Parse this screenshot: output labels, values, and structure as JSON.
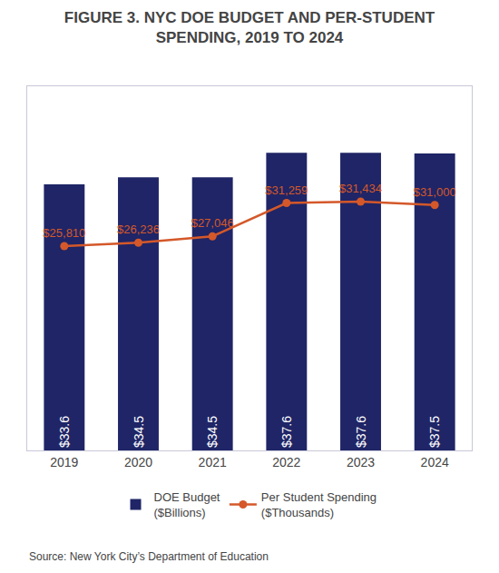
{
  "chart_data": {
    "type": "bar",
    "title": "FIGURE 3. NYC DOE BUDGET AND PER-STUDENT\nSPENDING, 2019 TO 2024",
    "categories": [
      "2019",
      "2020",
      "2021",
      "2022",
      "2023",
      "2024"
    ],
    "series": [
      {
        "name": "DOE Budget\n($Billions)",
        "type": "bar",
        "color": "#1f2566",
        "values": [
          33.6,
          34.5,
          34.5,
          37.6,
          37.6,
          37.5
        ],
        "value_labels": [
          "$33.6",
          "$34.5",
          "$34.5",
          "$37.6",
          "$37.6",
          "$37.5"
        ]
      },
      {
        "name": "Per Student Spending\n($Thousands)",
        "type": "line",
        "axis": "y2",
        "color": "#d4582a",
        "marker": "circle",
        "values": [
          25810,
          26236,
          27046,
          31259,
          31434,
          31000
        ],
        "value_labels": [
          "$25,810",
          "$26,236",
          "$27,046",
          "$31,259",
          "$31,434",
          "$31,000"
        ]
      }
    ],
    "ylim": [
      0,
      46
    ],
    "yticks": [],
    "y2lim": [
      0,
      46000
    ],
    "y2ticks": [],
    "tick_labels": "x",
    "grid": false,
    "legend": "bottom",
    "data_labels": true,
    "annotations": [
      "Source: New York City’s Department of Education"
    ]
  }
}
